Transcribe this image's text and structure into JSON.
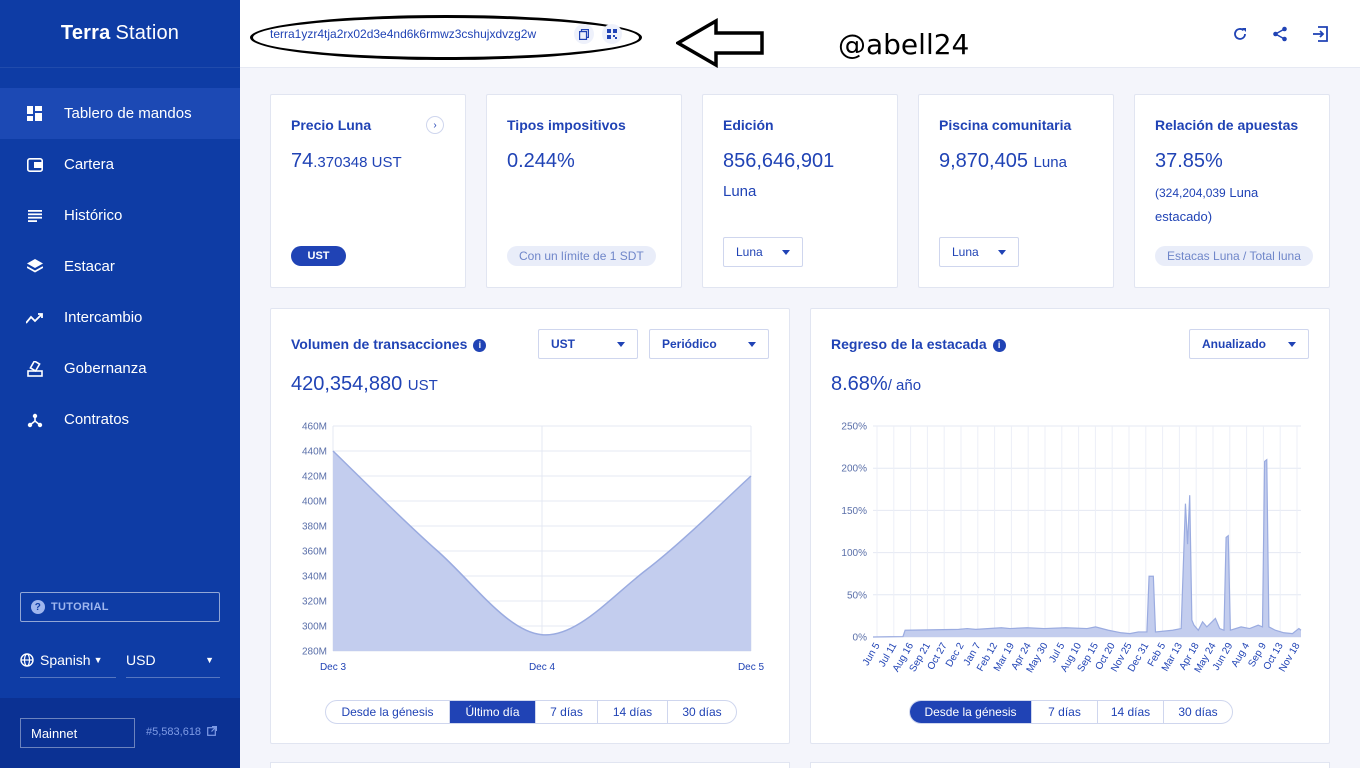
{
  "app": {
    "logo_bold": "Terra",
    "logo_light": "Station"
  },
  "sidebar": {
    "items": [
      {
        "label": "Tablero de mandos",
        "icon": "dashboard-icon"
      },
      {
        "label": "Cartera",
        "icon": "wallet-icon"
      },
      {
        "label": "Histórico",
        "icon": "history-icon"
      },
      {
        "label": "Estacar",
        "icon": "layers-icon"
      },
      {
        "label": "Intercambio",
        "icon": "swap-icon"
      },
      {
        "label": "Gobernanza",
        "icon": "governance-icon"
      },
      {
        "label": "Contratos",
        "icon": "contracts-icon"
      }
    ],
    "tutorial": "TUTORIAL",
    "language": "Spanish",
    "currency": "USD",
    "network": "Mainnet",
    "block": "#5,583,618"
  },
  "header": {
    "address": "terra1yzr4tja2rx02d3e4nd6k6rmwz3cshujxdvzg2w",
    "annotation": "@abell24"
  },
  "cards": {
    "price": {
      "title": "Precio Luna",
      "value_int": "74",
      "value_dec": ".370348 UST",
      "badge": "UST"
    },
    "tax": {
      "title": "Tipos impositivos",
      "value": "0.244%",
      "badge": "Con un límite de 1 SDT"
    },
    "issuance": {
      "title": "Edición",
      "value": "856,646,901",
      "unit": "Luna",
      "dropdown": "Luna"
    },
    "pool": {
      "title": "Piscina comunitaria",
      "value": "9,870,405",
      "unit": "Luna",
      "dropdown": "Luna"
    },
    "staking": {
      "title": "Relación de apuestas",
      "value": "37.85%",
      "sub1": "(324,204,039",
      "sub1_unit": "Luna",
      "sub2": "estacado)",
      "badge": "Estacas Luna / Total luna"
    }
  },
  "tx_volume": {
    "title": "Volumen de transacciones",
    "dropdown_currency": "UST",
    "dropdown_period": "Periódico",
    "value": "420,354,880",
    "unit": "UST",
    "ranges": [
      "Desde la génesis",
      "Último día",
      "7 días",
      "14 días",
      "30 días"
    ],
    "active_range": 1
  },
  "staking_return": {
    "title": "Regreso de la estacada",
    "dropdown": "Anualizado",
    "value": "8.68%",
    "unit": "/ año",
    "ranges": [
      "Desde la génesis",
      "7 días",
      "14 días",
      "30 días"
    ],
    "active_range": 0
  },
  "chart_data": [
    {
      "type": "area",
      "x": [
        "Dec 3",
        "Dec 4",
        "Dec 5"
      ],
      "y_ticks": [
        "460M",
        "440M",
        "420M",
        "400M",
        "380M",
        "360M",
        "340M",
        "320M",
        "300M",
        "280M"
      ],
      "ylim": [
        280,
        460
      ],
      "points": [
        [
          0,
          440
        ],
        [
          0.25,
          360
        ],
        [
          0.5,
          293
        ],
        [
          0.75,
          345
        ],
        [
          1.0,
          420
        ]
      ],
      "grid": true
    },
    {
      "type": "area",
      "y_ticks": [
        "250%",
        "200%",
        "150%",
        "100%",
        "50%",
        "0%"
      ],
      "ylim": [
        0,
        250
      ],
      "x": [
        "Jun 5",
        "Jul 11",
        "Aug 16",
        "Sep 21",
        "Oct 27",
        "Dec 2",
        "Jan 7",
        "Feb 12",
        "Mar 19",
        "Apr 24",
        "May 30",
        "Jul 5",
        "Aug 10",
        "Sep 15",
        "Oct 20",
        "Nov 25",
        "Dec 31",
        "Feb 5",
        "Mar 13",
        "Apr 18",
        "May 24",
        "Jun 29",
        "Aug 4",
        "Sep 9",
        "Oct 13",
        "Nov 18"
      ],
      "grid": true
    }
  ]
}
